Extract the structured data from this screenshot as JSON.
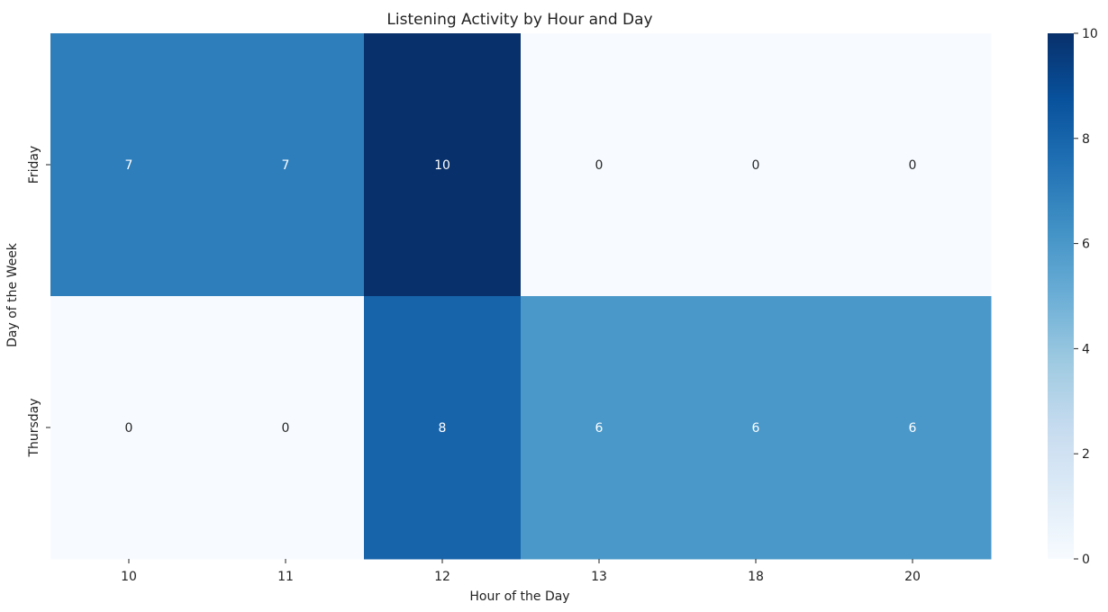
{
  "chart_data": {
    "type": "heatmap",
    "title": "Listening Activity by Hour and Day",
    "xlabel": "Hour of the Day",
    "ylabel": "Day of the Week",
    "x_categories": [
      "10",
      "11",
      "12",
      "13",
      "18",
      "20"
    ],
    "y_categories": [
      "Friday",
      "Thursday"
    ],
    "values": [
      [
        7,
        7,
        10,
        0,
        0,
        0
      ],
      [
        0,
        0,
        8,
        6,
        6,
        6
      ]
    ],
    "annotations": true,
    "colormap": "Blues",
    "color_range": [
      0,
      10
    ],
    "colorbar_ticks": [
      0,
      2,
      4,
      6,
      8,
      10
    ],
    "grid": false
  }
}
